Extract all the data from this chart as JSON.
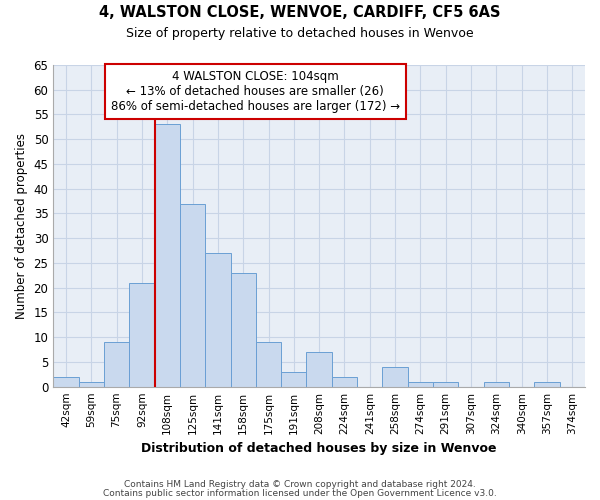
{
  "title1": "4, WALSTON CLOSE, WENVOE, CARDIFF, CF5 6AS",
  "title2": "Size of property relative to detached houses in Wenvoe",
  "xlabel": "Distribution of detached houses by size in Wenvoe",
  "ylabel": "Number of detached properties",
  "categories": [
    "42sqm",
    "59sqm",
    "75sqm",
    "92sqm",
    "108sqm",
    "125sqm",
    "141sqm",
    "158sqm",
    "175sqm",
    "191sqm",
    "208sqm",
    "224sqm",
    "241sqm",
    "258sqm",
    "274sqm",
    "291sqm",
    "307sqm",
    "324sqm",
    "340sqm",
    "357sqm",
    "374sqm"
  ],
  "values": [
    2,
    1,
    9,
    21,
    53,
    37,
    27,
    23,
    9,
    3,
    7,
    2,
    0,
    4,
    1,
    1,
    0,
    1,
    0,
    1,
    0
  ],
  "bar_color": "#c9d9ee",
  "bar_edge_color": "#6a9fd4",
  "grid_color": "#c8d4e6",
  "bg_color": "#e8eef6",
  "property_line_color": "#cc0000",
  "property_line_bin": 4,
  "annotation_line1": "4 WALSTON CLOSE: 104sqm",
  "annotation_line2": "← 13% of detached houses are smaller (26)",
  "annotation_line3": "86% of semi-detached houses are larger (172) →",
  "annotation_box_color": "#cc0000",
  "ylim": [
    0,
    65
  ],
  "yticks": [
    0,
    5,
    10,
    15,
    20,
    25,
    30,
    35,
    40,
    45,
    50,
    55,
    60,
    65
  ],
  "footer1": "Contains HM Land Registry data © Crown copyright and database right 2024.",
  "footer2": "Contains public sector information licensed under the Open Government Licence v3.0."
}
